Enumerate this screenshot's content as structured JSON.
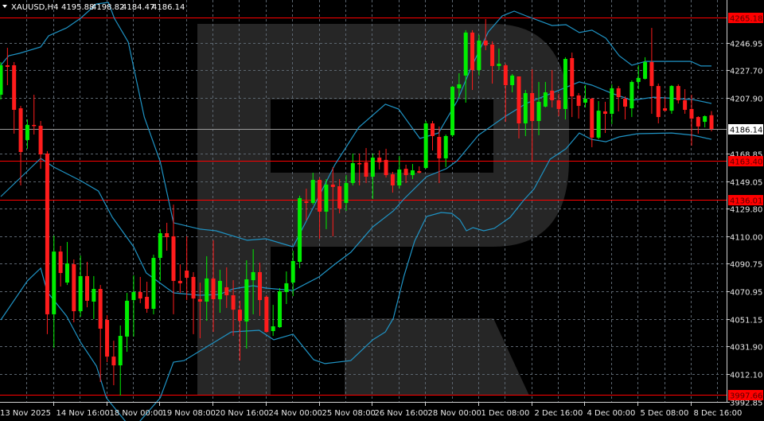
{
  "header": {
    "symbol_label": "XAUUSD,H4",
    "ohlc": [
      "4195.88",
      "4198.82",
      "4184.47",
      "4186.14"
    ],
    "collapse_icon": "triangle-down-icon"
  },
  "colors": {
    "background": "#000000",
    "bull": "#00ee00",
    "bear": "#ff1c1c",
    "band": "#1f93c4",
    "grid": "#5c6670",
    "level_line": "#ff0000",
    "logo": "#262626",
    "current_price_line": "#9a9a9a"
  },
  "chart_data": {
    "type": "candlestick",
    "title": "XAUUSD,H4",
    "grid": true,
    "ylim": [
      3992.85,
      4265.18
    ],
    "y_ticks": [
      "4246.95",
      "4227.70",
      "4207.90",
      "4168.85",
      "4149.05",
      "4129.80",
      "4110.00",
      "4090.75",
      "4070.95",
      "4051.15",
      "4031.90",
      "4012.10",
      "3992.85"
    ],
    "x_tick_labels": [
      "13 Nov 2025",
      "14 Nov 16:00",
      "18 Nov 00:00",
      "19 Nov 08:00",
      "20 Nov 16:00",
      "24 Nov 00:00",
      "25 Nov 08:00",
      "26 Nov 16:00",
      "28 Nov 00:00",
      "1 Dec 08:00",
      "2 Dec 16:00",
      "4 Dec 00:00",
      "5 Dec 08:00",
      "8 Dec 16:00"
    ],
    "levels": [
      "4265.18",
      "4163.40",
      "4136.01",
      "3997.66"
    ],
    "current_price": "4186.14",
    "candles_ohlc": [
      [
        4210.4,
        4233.6,
        4207.0,
        4231.3
      ],
      [
        4231.3,
        4243.7,
        4217.2,
        4230.2
      ],
      [
        4231.3,
        4233.6,
        4182.8,
        4199.7
      ],
      [
        4200.8,
        4202.5,
        4146.1,
        4169.8
      ],
      [
        4178.3,
        4192.9,
        4172.1,
        4189.0
      ],
      [
        4189.0,
        4210.4,
        4182.2,
        4188.4
      ],
      [
        4188.4,
        4191.8,
        4157.9,
        4168.1
      ],
      [
        4168.7,
        4170.4,
        4040.6,
        4054.7
      ],
      [
        4054.7,
        4110.5,
        4031.0,
        4099.2
      ],
      [
        4099.2,
        4103.2,
        4074.4,
        4084.0
      ],
      [
        4077.2,
        4106.0,
        4075.5,
        4090.8
      ],
      [
        4090.2,
        4093.6,
        4049.0,
        4056.9
      ],
      [
        4056.9,
        4096.4,
        4053.0,
        4081.8
      ],
      [
        4081.8,
        4091.9,
        4059.7,
        4064.3
      ],
      [
        4063.7,
        4081.8,
        4051.3,
        4072.7
      ],
      [
        4072.7,
        4075.5,
        4006.7,
        4044.5
      ],
      [
        4050.7,
        4054.1,
        4020.8,
        4024.7
      ],
      [
        4024.7,
        4036.0,
        4004.4,
        4018.5
      ],
      [
        4018.5,
        4046.8,
        3997.1,
        4039.4
      ],
      [
        4038.9,
        4069.9,
        4028.1,
        4064.3
      ],
      [
        4064.8,
        4082.3,
        4038.9,
        4070.5
      ],
      [
        4070.5,
        4081.2,
        4062.6,
        4065.9
      ],
      [
        4067.1,
        4077.8,
        4055.8,
        4058.6
      ],
      [
        4058.6,
        4097.0,
        4054.7,
        4094.7
      ],
      [
        4094.7,
        4115.1,
        4078.4,
        4112.2
      ],
      [
        4112.2,
        4119.6,
        4099.8,
        4109.4
      ],
      [
        4110.0,
        4132.5,
        4054.7,
        4078.4
      ],
      [
        4078.4,
        4090.2,
        4069.9,
        4076.7
      ],
      [
        4085.7,
        4110.0,
        4064.8,
        4080.6
      ],
      [
        4081.2,
        4084.6,
        4040.6,
        4065.9
      ],
      [
        4065.4,
        4077.2,
        4037.7,
        4063.7
      ],
      [
        4063.7,
        4095.9,
        4050.1,
        4080.1
      ],
      [
        4080.1,
        4107.2,
        4042.2,
        4065.4
      ],
      [
        4065.4,
        4086.3,
        4055.8,
        4078.4
      ],
      [
        4073.9,
        4088.0,
        4059.2,
        4068.2
      ],
      [
        4068.2,
        4078.9,
        4039.4,
        4058.0
      ],
      [
        4058.0,
        4064.3,
        4021.9,
        4050.1
      ],
      [
        4049.6,
        4093.0,
        4030.4,
        4079.5
      ],
      [
        4078.9,
        4100.9,
        4054.7,
        4084.6
      ],
      [
        4084.6,
        4091.3,
        4053.5,
        4064.8
      ],
      [
        4067.1,
        4068.2,
        4041.7,
        4042.2
      ],
      [
        4042.8,
        4061.4,
        4039.4,
        4046.2
      ],
      [
        4045.6,
        4073.3,
        4045.1,
        4071.0
      ],
      [
        4070.5,
        4085.1,
        4062.0,
        4076.7
      ],
      [
        4077.2,
        4099.8,
        4067.6,
        4092.5
      ],
      [
        4091.9,
        4138.8,
        4087.4,
        4137.1
      ],
      [
        4134.8,
        4143.8,
        4121.3,
        4133.7
      ],
      [
        4133.7,
        4155.1,
        4132.5,
        4150.0
      ],
      [
        4150.0,
        4151.7,
        4108.3,
        4127.5
      ],
      [
        4127.5,
        4150.6,
        4115.1,
        4146.7
      ],
      [
        4146.7,
        4159.1,
        4110.0,
        4145.0
      ],
      [
        4145.5,
        4150.6,
        4126.3,
        4129.7
      ],
      [
        4133.7,
        4153.4,
        4128.0,
        4147.8
      ],
      [
        4147.8,
        4168.7,
        4146.1,
        4161.9
      ],
      [
        4161.9,
        4168.7,
        4146.1,
        4161.3
      ],
      [
        4162.5,
        4172.6,
        4147.8,
        4152.3
      ],
      [
        4152.3,
        4168.7,
        4136.5,
        4165.8
      ],
      [
        4165.8,
        4170.9,
        4157.4,
        4162.5
      ],
      [
        4164.2,
        4172.1,
        4151.7,
        4153.4
      ],
      [
        4154.0,
        4155.7,
        4141.0,
        4146.1
      ],
      [
        4146.1,
        4167.0,
        4143.8,
        4157.4
      ],
      [
        4157.9,
        4160.8,
        4147.8,
        4153.4
      ],
      [
        4153.4,
        4161.3,
        4150.6,
        4156.8
      ],
      [
        4156.3,
        4159.6,
        4154.6,
        4155.1
      ],
      [
        4158.5,
        4191.8,
        4157.9,
        4190.1
      ],
      [
        4190.1,
        4191.8,
        4170.9,
        4181.1
      ],
      [
        4180.5,
        4187.9,
        4147.8,
        4165.3
      ],
      [
        4165.3,
        4182.2,
        4159.1,
        4181.1
      ],
      [
        4181.7,
        4216.6,
        4180.5,
        4216.1
      ],
      [
        4215.0,
        4225.7,
        4208.2,
        4217.8
      ],
      [
        4224.0,
        4256.2,
        4204.8,
        4254.5
      ],
      [
        4254.5,
        4256.2,
        4213.8,
        4227.9
      ],
      [
        4227.9,
        4252.8,
        4224.0,
        4248.8
      ],
      [
        4248.8,
        4264.1,
        4242.0,
        4245.4
      ],
      [
        4246.0,
        4248.3,
        4218.3,
        4230.8
      ],
      [
        4230.8,
        4243.2,
        4227.9,
        4232.4
      ],
      [
        4231.3,
        4232.4,
        4191.2,
        4217.2
      ],
      [
        4217.2,
        4225.1,
        4212.1,
        4224.0
      ],
      [
        4223.4,
        4223.4,
        4179.4,
        4190.1
      ],
      [
        4190.1,
        4213.8,
        4181.1,
        4211.6
      ],
      [
        4211.6,
        4228.5,
        4163.0,
        4191.8
      ],
      [
        4191.8,
        4219.5,
        4181.7,
        4205.4
      ],
      [
        4202.0,
        4219.5,
        4201.4,
        4212.1
      ],
      [
        4213.3,
        4227.9,
        4201.4,
        4206.5
      ],
      [
        4206.5,
        4211.0,
        4195.2,
        4200.3
      ],
      [
        4200.3,
        4237.0,
        4192.9,
        4235.8
      ],
      [
        4236.4,
        4240.3,
        4194.6,
        4209.3
      ],
      [
        4209.9,
        4211.6,
        4193.5,
        4202.5
      ],
      [
        4204.8,
        4217.2,
        4201.4,
        4207.6
      ],
      [
        4207.6,
        4208.2,
        4173.2,
        4180.0
      ],
      [
        4180.0,
        4205.9,
        4178.8,
        4199.1
      ],
      [
        4198.6,
        4205.4,
        4183.3,
        4196.9
      ],
      [
        4196.9,
        4217.8,
        4189.6,
        4215.0
      ],
      [
        4215.0,
        4216.6,
        4198.6,
        4208.7
      ],
      [
        4207.6,
        4209.3,
        4192.9,
        4202.0
      ],
      [
        4200.8,
        4220.6,
        4194.6,
        4219.5
      ],
      [
        4219.5,
        4231.3,
        4214.4,
        4222.3
      ],
      [
        4221.7,
        4237.0,
        4221.2,
        4233.6
      ],
      [
        4233.6,
        4257.8,
        4196.9,
        4216.6
      ],
      [
        4216.6,
        4218.3,
        4190.1,
        4194.6
      ],
      [
        4200.8,
        4208.7,
        4198.6,
        4199.1
      ],
      [
        4199.1,
        4217.2,
        4196.9,
        4216.6
      ],
      [
        4216.6,
        4217.8,
        4204.2,
        4206.5
      ],
      [
        4206.5,
        4214.4,
        4196.9,
        4199.7
      ],
      [
        4200.3,
        4210.4,
        4174.3,
        4193.5
      ],
      [
        4194.6,
        4195.2,
        4182.8,
        4187.9
      ],
      [
        4191.2,
        4195.8,
        4187.3,
        4195.2
      ],
      [
        4195.88,
        4198.82,
        4184.47,
        4186.14
      ]
    ],
    "bollinger_bands": {
      "upper": [
        [
          1,
          4231.3
        ],
        [
          2.2,
          4238.1
        ],
        [
          3.8,
          4239.8
        ],
        [
          7,
          4244.3
        ],
        [
          8.2,
          4252.2
        ],
        [
          10.9,
          4257.8
        ],
        [
          13,
          4264.6
        ],
        [
          15.4,
          4274.8
        ],
        [
          17.2,
          4275.9
        ],
        [
          18.1,
          4264.6
        ],
        [
          20.2,
          4247.7
        ],
        [
          22.6,
          4194.6
        ],
        [
          25,
          4163.0
        ],
        [
          27,
          4119.6
        ],
        [
          31,
          4115.1
        ],
        [
          33.4,
          4113.9
        ],
        [
          38.1,
          4107.2
        ],
        [
          40.9,
          4108.3
        ],
        [
          45,
          4102.6
        ],
        [
          48.1,
          4130.9
        ],
        [
          51.3,
          4160.8
        ],
        [
          54.9,
          4187.3
        ],
        [
          58.9,
          4203.7
        ],
        [
          60.9,
          4200.3
        ],
        [
          64.1,
          4179.4
        ],
        [
          66.9,
          4183.3
        ],
        [
          69.7,
          4205.9
        ],
        [
          71.7,
          4228.5
        ],
        [
          74.4,
          4255.0
        ],
        [
          76.5,
          4266.3
        ],
        [
          78.3,
          4269.7
        ],
        [
          80.1,
          4266.3
        ],
        [
          84,
          4259.5
        ],
        [
          86.1,
          4260.1
        ],
        [
          88.1,
          4254.5
        ],
        [
          90,
          4256.2
        ],
        [
          92.1,
          4250.5
        ],
        [
          94.1,
          4238.1
        ],
        [
          96,
          4231.3
        ],
        [
          98.1,
          4234.1
        ],
        [
          104.9,
          4234.1
        ],
        [
          106.4,
          4230.8
        ],
        [
          108,
          4230.8
        ]
      ],
      "middle": [
        [
          1,
          4138.2
        ],
        [
          7,
          4165.3
        ],
        [
          9,
          4159.1
        ],
        [
          13,
          4149.5
        ],
        [
          15.7,
          4142.1
        ],
        [
          17.8,
          4123.5
        ],
        [
          21,
          4102.6
        ],
        [
          22.9,
          4084.0
        ],
        [
          27,
          4069.9
        ],
        [
          31,
          4068.2
        ],
        [
          33.9,
          4068.8
        ],
        [
          36,
          4072.7
        ],
        [
          39,
          4075.0
        ],
        [
          40.9,
          4073.3
        ],
        [
          45,
          4071.6
        ],
        [
          48.9,
          4081.2
        ],
        [
          51.3,
          4090.2
        ],
        [
          53.7,
          4098.7
        ],
        [
          57,
          4116.7
        ],
        [
          60.1,
          4128.0
        ],
        [
          61.7,
          4136.5
        ],
        [
          65.1,
          4152.3
        ],
        [
          68.1,
          4158.0
        ],
        [
          69.7,
          4163.6
        ],
        [
          72.9,
          4181.7
        ],
        [
          76.8,
          4194.6
        ],
        [
          80.1,
          4204.2
        ],
        [
          84,
          4211.6
        ],
        [
          88.1,
          4219.5
        ],
        [
          90,
          4217.2
        ],
        [
          92.9,
          4211.6
        ],
        [
          96,
          4206.5
        ],
        [
          99.3,
          4208.7
        ],
        [
          105.2,
          4207.0
        ],
        [
          108,
          4204.2
        ]
      ],
      "lower": [
        [
          1,
          4050.7
        ],
        [
          5,
          4078.4
        ],
        [
          7,
          4087.4
        ],
        [
          8,
          4070.5
        ],
        [
          10.9,
          4053.5
        ],
        [
          13,
          4034.9
        ],
        [
          15.4,
          4018.0
        ],
        [
          16.9,
          3995.4
        ],
        [
          20.8,
          3972.8
        ],
        [
          25,
          3995.4
        ],
        [
          27,
          4020.8
        ],
        [
          28.6,
          4021.9
        ],
        [
          35.7,
          4042.2
        ],
        [
          39.9,
          4043.4
        ],
        [
          42.1,
          4036.6
        ],
        [
          45,
          4040.6
        ],
        [
          48.1,
          4022.5
        ],
        [
          49.8,
          4019.7
        ],
        [
          53.7,
          4021.9
        ],
        [
          57,
          4036.6
        ],
        [
          58.9,
          4042.2
        ],
        [
          60.1,
          4051.8
        ],
        [
          61.7,
          4081.8
        ],
        [
          63.3,
          4106.6
        ],
        [
          65.1,
          4124.1
        ],
        [
          67.3,
          4126.9
        ],
        [
          68.9,
          4126.3
        ],
        [
          70.1,
          4121.8
        ],
        [
          71.1,
          4113.9
        ],
        [
          72.1,
          4116.2
        ],
        [
          73.7,
          4113.9
        ],
        [
          75.3,
          4115.6
        ],
        [
          77.7,
          4123.5
        ],
        [
          79.7,
          4135.4
        ],
        [
          81.3,
          4143.8
        ],
        [
          83.7,
          4164.7
        ],
        [
          86.1,
          4172.1
        ],
        [
          88.1,
          4183.3
        ],
        [
          89.9,
          4178.8
        ],
        [
          92.1,
          4177.1
        ],
        [
          94.1,
          4180.5
        ],
        [
          96.9,
          4182.8
        ],
        [
          102,
          4183.3
        ],
        [
          105.2,
          4181.7
        ],
        [
          108,
          4178.8
        ]
      ]
    }
  }
}
